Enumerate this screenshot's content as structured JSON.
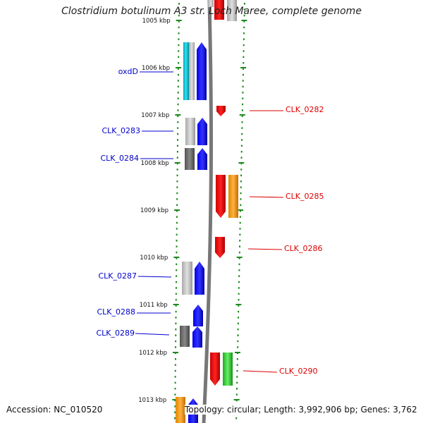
{
  "title": "Clostridium botulinum A3 str. Loch Maree, complete genome",
  "footer": {
    "accession": "Accession: NC_010520",
    "topology": "Topology: circular; Length: 3,992,906 bp; Genes: 3,762"
  },
  "axis": {
    "ticks": [
      "1005 kbp",
      "1006 kbp",
      "1007 kbp",
      "1008 kbp",
      "1009 kbp",
      "1010 kbp",
      "1011 kbp",
      "1012 kbp",
      "1013 kbp"
    ]
  },
  "colors": {
    "left_labels": "#0000cc",
    "right_labels": "#dd0000",
    "tick_marks": "#1a8a1a",
    "backbone": "#777777",
    "plus_strand_genes": "#0000ee",
    "minus_strand_genes": "#ee0000",
    "orange_feature": "#f39c12",
    "green_feature": "#33cc33",
    "cyan_feature": "#11c6d6"
  },
  "genes_left": [
    {
      "label": "oxdD"
    },
    {
      "label": "CLK_0283"
    },
    {
      "label": "CLK_0284"
    },
    {
      "label": "CLK_0287"
    },
    {
      "label": "CLK_0288"
    },
    {
      "label": "CLK_0289"
    }
  ],
  "genes_right": [
    {
      "label": "CLK_0282"
    },
    {
      "label": "CLK_0285"
    },
    {
      "label": "CLK_0286"
    },
    {
      "label": "CLK_0290"
    }
  ]
}
